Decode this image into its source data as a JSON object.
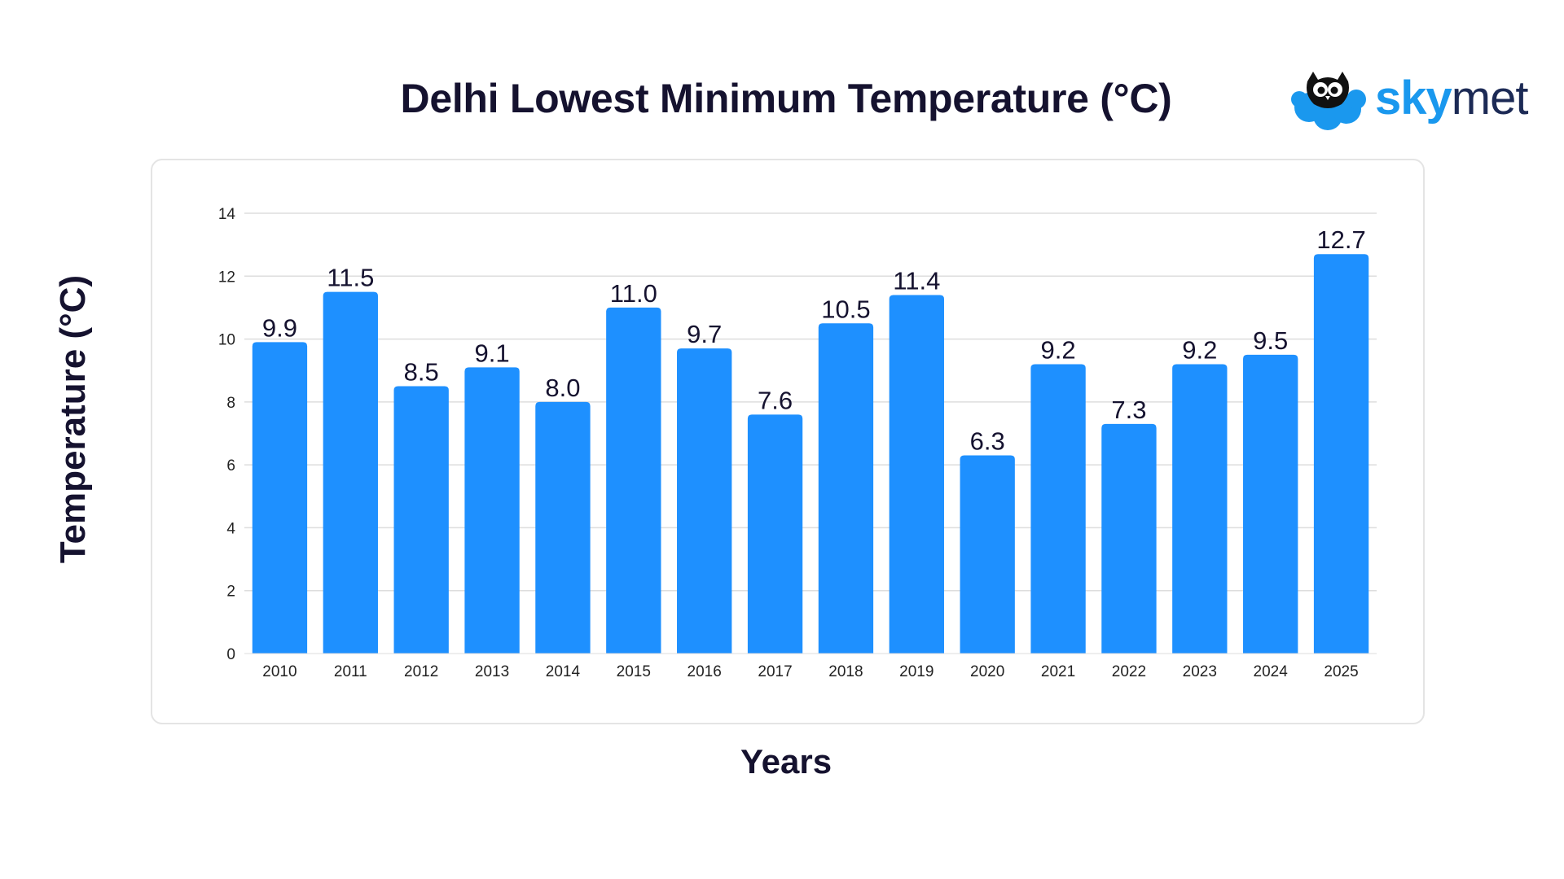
{
  "header": {
    "title": "Delhi Lowest Minimum Temperature (°C)",
    "logo_text_sky": "sky",
    "logo_text_met": "met",
    "logo_icon": "owl-cloud-icon"
  },
  "colors": {
    "bar": "#1e90ff",
    "title": "#15122f",
    "grid": "#dddddd",
    "brand_blue": "#1a98ee",
    "brand_dark": "#1c2a55"
  },
  "chart_data": {
    "type": "bar",
    "title": "Delhi Lowest Minimum Temperature (°C)",
    "xlabel": "Years",
    "ylabel": "Temperature (°C)",
    "categories": [
      "2010",
      "2011",
      "2012",
      "2013",
      "2014",
      "2015",
      "2016",
      "2017",
      "2018",
      "2019",
      "2020",
      "2021",
      "2022",
      "2023",
      "2024",
      "2025"
    ],
    "values": [
      9.9,
      11.5,
      8.5,
      9.1,
      8.0,
      11.0,
      9.7,
      7.6,
      10.5,
      11.4,
      6.3,
      9.2,
      7.3,
      9.2,
      9.5,
      12.7
    ],
    "value_labels": [
      "9.9",
      "11.5",
      "8.5",
      "9.1",
      "8.0",
      "11.0",
      "9.7",
      "7.6",
      "10.5",
      "11.4",
      "6.3",
      "9.2",
      "7.3",
      "9.2",
      "9.5",
      "12.7"
    ],
    "yticks": [
      0,
      2,
      4,
      6,
      8,
      10,
      12,
      14
    ],
    "ylim": [
      0,
      14
    ],
    "grid": true,
    "legend": "none"
  }
}
